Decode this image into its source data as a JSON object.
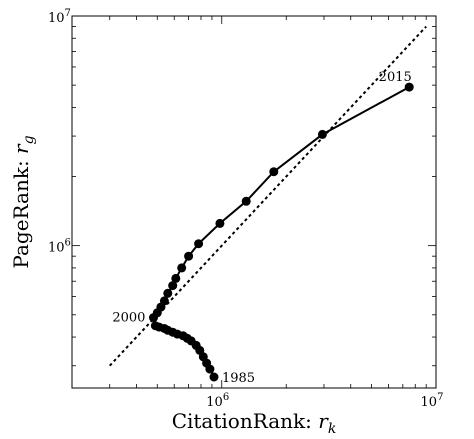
{
  "chart_data": {
    "type": "line",
    "x_scale": "log",
    "y_scale": "log",
    "xlim": [
      200000,
      10000000
    ],
    "ylim": [
      240000,
      10000000
    ],
    "xlabel_text": "CitationRank: ",
    "xlabel_symbol": "r",
    "xlabel_sub": "k",
    "ylabel_text": "PageRank: ",
    "ylabel_symbol": "r",
    "ylabel_sub": "g",
    "x_ticks": [
      {
        "value": 1000000,
        "base": "10",
        "exp": "6"
      },
      {
        "value": 10000000,
        "base": "10",
        "exp": "7"
      }
    ],
    "y_ticks": [
      {
        "value": 1000000,
        "base": "10",
        "exp": "6"
      },
      {
        "value": 10000000,
        "base": "10",
        "exp": "7"
      }
    ],
    "reference_line": {
      "style": "dotted",
      "points": [
        [
          300000,
          300000
        ],
        [
          9000000,
          9000000
        ]
      ]
    },
    "series": [
      {
        "x": [
          920000,
          880000,
          850000,
          820000,
          790000,
          760000,
          720000,
          690000,
          660000,
          620000,
          590000,
          560000,
          540000,
          510000,
          490000,
          480000,
          500000,
          520000,
          540000,
          560000,
          590000,
          610000,
          650000,
          700000,
          780000,
          980000,
          1300000,
          1750000,
          2950000,
          7500000
        ],
        "y": [
          268000,
          290000,
          308000,
          328000,
          350000,
          368000,
          385000,
          395000,
          405000,
          412000,
          420000,
          428000,
          436000,
          442000,
          448000,
          486000,
          510000,
          540000,
          575000,
          620000,
          670000,
          720000,
          800000,
          900000,
          1020000,
          1250000,
          1560000,
          2100000,
          3050000,
          4900000
        ]
      }
    ],
    "annotations": [
      {
        "text": "1985",
        "x": 920000,
        "y": 268000,
        "anchor": "right"
      },
      {
        "text": "2000",
        "x": 480000,
        "y": 486000,
        "anchor": "left"
      },
      {
        "text": "2015",
        "x": 7500000,
        "y": 4900000,
        "anchor": "above-left"
      }
    ]
  }
}
